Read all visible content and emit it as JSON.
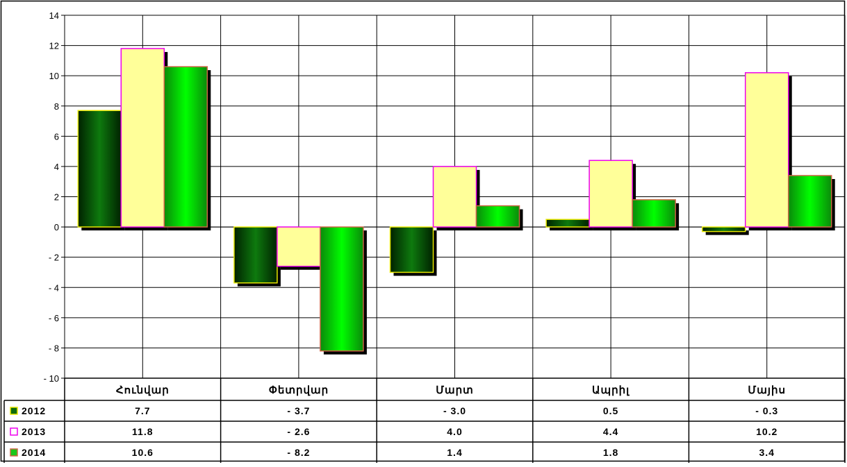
{
  "chart_data": {
    "type": "bar",
    "categories": [
      "Հունվար",
      "Փետրվար",
      "Մարտ",
      "Ապրիլ",
      "Մայիս"
    ],
    "series": [
      {
        "name": "2012",
        "values": [
          7.7,
          -3.7,
          -3.0,
          0.5,
          -0.3
        ],
        "value_labels": [
          "7.7",
          "- 3.7",
          "- 3.0",
          "0.5",
          "- 0.3"
        ],
        "color": "#0d6b0d"
      },
      {
        "name": "2013",
        "values": [
          11.8,
          -2.6,
          4.0,
          4.4,
          10.2
        ],
        "value_labels": [
          "11.8",
          "- 2.6",
          "4.0",
          "4.4",
          "10.2"
        ],
        "color": "#ffff99"
      },
      {
        "name": "2014",
        "values": [
          10.6,
          -8.2,
          1.4,
          1.8,
          3.4
        ],
        "value_labels": [
          "10.6",
          "- 8.2",
          "1.4",
          "1.8",
          "3.4"
        ],
        "color": "#19c819"
      }
    ],
    "yticks": [
      "14",
      "12",
      "10",
      "8",
      "6",
      "4",
      "2",
      "0",
      "- 2",
      "- 4",
      "- 6",
      "- 8",
      "- 10"
    ],
    "ylim": [
      -10,
      14
    ],
    "grid": true,
    "legend": "data-table"
  }
}
